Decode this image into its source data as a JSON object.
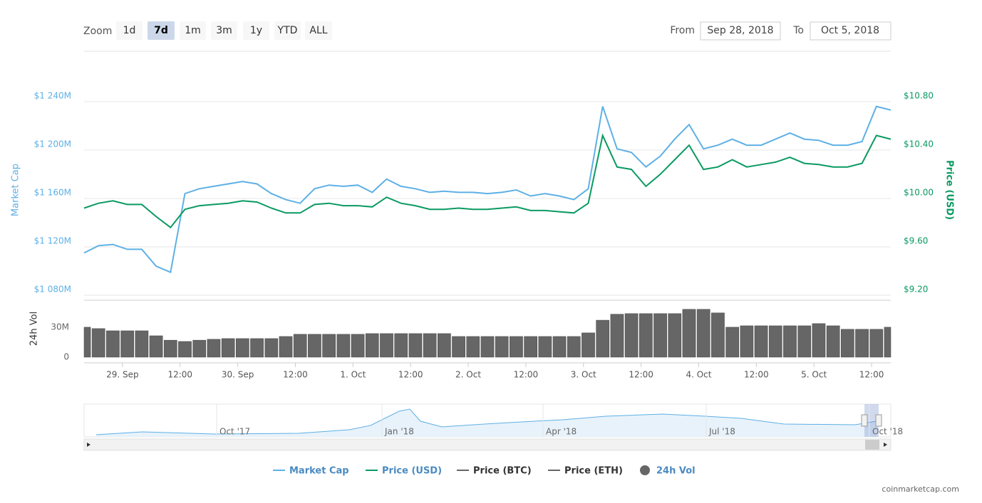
{
  "controls": {
    "zoom_label": "Zoom",
    "zoom_buttons": [
      "1d",
      "7d",
      "1m",
      "3m",
      "1y",
      "YTD",
      "ALL"
    ],
    "active_zoom_index": 1,
    "from_label": "From",
    "from_value": "Sep 28, 2018",
    "to_label": "To",
    "to_value": "Oct 5, 2018"
  },
  "chart_data": [
    {
      "type": "line",
      "ylabel": "Market Cap",
      "y2label": "Price (USD)",
      "x": [
        -8,
        -5,
        -2,
        1,
        4,
        7,
        10,
        13,
        16,
        19,
        22,
        25,
        28,
        31,
        34,
        37,
        40,
        43,
        46,
        49,
        52,
        55,
        58,
        61,
        64,
        67,
        70,
        73,
        76,
        79,
        82,
        85,
        88,
        91,
        94,
        97,
        100,
        103,
        106,
        109,
        112,
        115,
        118,
        121,
        124,
        127,
        130,
        133,
        136,
        139,
        142,
        145,
        148,
        151,
        154,
        157,
        160
      ],
      "xlim": [
        -8,
        160
      ],
      "ylim": [
        1080,
        1254
      ],
      "yticks": [
        {
          "value": 1080,
          "label": "$1 080M"
        },
        {
          "value": 1120,
          "label": "$1 120M"
        },
        {
          "value": 1160,
          "label": "$1 160M"
        },
        {
          "value": 1200,
          "label": "$1 200M"
        },
        {
          "value": 1240,
          "label": "$1 240M"
        }
      ],
      "y2lim": [
        9.2,
        10.94
      ],
      "y2ticks": [
        {
          "value": 9.2,
          "label": "$9.20"
        },
        {
          "value": 9.6,
          "label": "$9.60"
        },
        {
          "value": 10.0,
          "label": "$10.00"
        },
        {
          "value": 10.4,
          "label": "$10.40"
        },
        {
          "value": 10.8,
          "label": "$10.80"
        }
      ],
      "grid": true,
      "series": [
        {
          "name": "Market Cap",
          "color": "#5eb0e5",
          "axis": "y",
          "values": [
            1115,
            1121,
            1122,
            1118,
            1118,
            1104,
            1099,
            1164,
            1168,
            1170,
            1172,
            1174,
            1172,
            1164,
            1159,
            1156,
            1168,
            1171,
            1170,
            1171,
            1165,
            1176,
            1170,
            1168,
            1165,
            1166,
            1165,
            1165,
            1164,
            1165,
            1167,
            1162,
            1164,
            1162,
            1159,
            1168,
            1236,
            1201,
            1198,
            1186,
            1195,
            1209,
            1221,
            1201,
            1204,
            1209,
            1204,
            1204,
            1209,
            1214,
            1209,
            1208,
            1204,
            1204,
            1207,
            1236,
            1233
          ]
        },
        {
          "name": "Price (USD)",
          "color": "#0a9a62",
          "axis": "y2",
          "values": [
            9.92,
            9.96,
            9.98,
            9.95,
            9.95,
            9.85,
            9.76,
            9.91,
            9.94,
            9.95,
            9.96,
            9.98,
            9.97,
            9.92,
            9.88,
            9.88,
            9.95,
            9.96,
            9.94,
            9.94,
            9.93,
            10.01,
            9.96,
            9.94,
            9.91,
            9.91,
            9.92,
            9.91,
            9.91,
            9.92,
            9.93,
            9.9,
            9.9,
            9.89,
            9.88,
            9.96,
            10.52,
            10.26,
            10.24,
            10.1,
            10.2,
            10.32,
            10.44,
            10.24,
            10.26,
            10.32,
            10.26,
            10.28,
            10.3,
            10.34,
            10.29,
            10.28,
            10.26,
            10.26,
            10.29,
            10.52,
            10.49
          ]
        },
        {
          "name": "Price (BTC)",
          "color": "#666666",
          "visible": false
        },
        {
          "name": "Price (ETH)",
          "color": "#666666",
          "visible": false
        }
      ]
    },
    {
      "type": "bar",
      "ylabel": "24h Vol",
      "x": [
        -8,
        -5,
        -2,
        1,
        4,
        7,
        10,
        13,
        16,
        19,
        22,
        25,
        28,
        31,
        34,
        37,
        40,
        43,
        46,
        49,
        52,
        55,
        58,
        61,
        64,
        67,
        70,
        73,
        76,
        79,
        82,
        85,
        88,
        91,
        94,
        97,
        100,
        103,
        106,
        109,
        112,
        115,
        118,
        121,
        124,
        127,
        130,
        133,
        136,
        139,
        142,
        145,
        148,
        151,
        154,
        157,
        160
      ],
      "xlim": [
        -8,
        160
      ],
      "xticks": [
        {
          "value": 0,
          "label": "29. Sep"
        },
        {
          "value": 12,
          "label": "12:00"
        },
        {
          "value": 24,
          "label": "30. Sep"
        },
        {
          "value": 36,
          "label": "12:00"
        },
        {
          "value": 48,
          "label": "1. Oct"
        },
        {
          "value": 60,
          "label": "12:00"
        },
        {
          "value": 72,
          "label": "2. Oct"
        },
        {
          "value": 84,
          "label": "12:00"
        },
        {
          "value": 96,
          "label": "3. Oct"
        },
        {
          "value": 108,
          "label": "12:00"
        },
        {
          "value": 120,
          "label": "4. Oct"
        },
        {
          "value": 132,
          "label": "12:00"
        },
        {
          "value": 144,
          "label": "5. Oct"
        },
        {
          "value": 156,
          "label": "12:00"
        }
      ],
      "ylim": [
        0,
        57
      ],
      "yticks": [
        0,
        {
          "value": 30,
          "label": "30M"
        }
      ],
      "grid": false,
      "series": [
        {
          "name": "24h Vol",
          "color": "#666666",
          "values": [
            30,
            28.6,
            26.4,
            26.4,
            26.4,
            21.4,
            17,
            15.7,
            17,
            17.9,
            18.6,
            18.6,
            18.6,
            18.6,
            20.7,
            22.9,
            22.9,
            22.9,
            22.9,
            22.9,
            23.6,
            23.6,
            23.6,
            23.6,
            23.6,
            23.6,
            20.7,
            20.7,
            20.7,
            20.7,
            20.7,
            20.7,
            20.7,
            20.7,
            20.7,
            24.3,
            37,
            43,
            43.6,
            43.6,
            43.6,
            43.6,
            47.9,
            47.9,
            44.3,
            30,
            31.4,
            31.4,
            31.4,
            31.4,
            31.4,
            33.6,
            31.4,
            27.9,
            27.9,
            27.9,
            30
          ]
        }
      ]
    }
  ],
  "navigator": {
    "xticks": [
      "Oct '17",
      "Jan '18",
      "Apr '18",
      "Jul '18",
      "Oct '18"
    ]
  },
  "credit": "coinmarketcap.com"
}
